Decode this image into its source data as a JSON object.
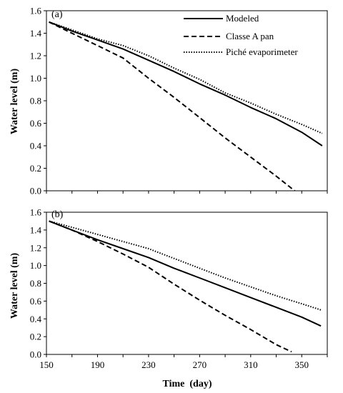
{
  "chart_data": [
    {
      "type": "line",
      "panel_label": "(a)",
      "xlabel": "",
      "ylabel": "Water level (m)",
      "xlim": [
        150,
        370
      ],
      "ylim": [
        0,
        1.6
      ],
      "yticks": [
        "0.0",
        "0.2",
        "0.4",
        "0.6",
        "0.8",
        "1.0",
        "1.2",
        "1.4",
        "1.6"
      ],
      "x_tick_labels_shown": false,
      "grid": false,
      "legend_placement": "top-right",
      "series": [
        {
          "name": "Modeled",
          "style": "solid",
          "x": [
            152,
            170,
            190,
            210,
            230,
            250,
            270,
            290,
            310,
            330,
            350,
            366
          ],
          "y": [
            1.5,
            1.42,
            1.34,
            1.26,
            1.16,
            1.06,
            0.95,
            0.85,
            0.74,
            0.64,
            0.52,
            0.4
          ]
        },
        {
          "name": "Classe A pan",
          "style": "dashed",
          "x": [
            152,
            170,
            190,
            210,
            230,
            250,
            270,
            290,
            310,
            330,
            350,
            362
          ],
          "y": [
            1.5,
            1.4,
            1.29,
            1.18,
            1.0,
            0.83,
            0.65,
            0.47,
            0.3,
            0.13,
            -0.05,
            -0.05
          ]
        },
        {
          "name": "Piché evaporimeter",
          "style": "dotted",
          "x": [
            152,
            170,
            190,
            210,
            230,
            250,
            270,
            290,
            310,
            330,
            350,
            366
          ],
          "y": [
            1.5,
            1.43,
            1.35,
            1.29,
            1.2,
            1.09,
            0.99,
            0.87,
            0.78,
            0.68,
            0.59,
            0.51
          ]
        }
      ]
    },
    {
      "type": "line",
      "panel_label": "(b)",
      "xlabel": "Time  (day)",
      "ylabel": "Water level (m)",
      "xlim": [
        150,
        370
      ],
      "ylim": [
        0,
        1.6
      ],
      "yticks": [
        "0.0",
        "0.2",
        "0.4",
        "0.6",
        "0.8",
        "1.0",
        "1.2",
        "1.4",
        "1.6"
      ],
      "xticks": [
        "150",
        "190",
        "230",
        "270",
        "310",
        "350"
      ],
      "x_tick_labels_shown": true,
      "grid": false,
      "series": [
        {
          "name": "Modeled",
          "style": "solid",
          "x": [
            152,
            170,
            190,
            210,
            230,
            250,
            270,
            290,
            310,
            330,
            350,
            365
          ],
          "y": [
            1.5,
            1.4,
            1.29,
            1.19,
            1.09,
            0.97,
            0.86,
            0.75,
            0.64,
            0.53,
            0.42,
            0.32
          ]
        },
        {
          "name": "Classe A pan",
          "style": "dashed",
          "x": [
            152,
            170,
            190,
            210,
            230,
            250,
            270,
            290,
            310,
            330,
            342
          ],
          "y": [
            1.5,
            1.4,
            1.27,
            1.13,
            0.98,
            0.79,
            0.61,
            0.44,
            0.28,
            0.11,
            0.03
          ]
        },
        {
          "name": "Piché evaporimeter",
          "style": "dotted",
          "x": [
            152,
            170,
            190,
            210,
            230,
            250,
            270,
            290,
            310,
            330,
            350,
            365
          ],
          "y": [
            1.5,
            1.43,
            1.35,
            1.27,
            1.19,
            1.08,
            0.97,
            0.86,
            0.76,
            0.66,
            0.57,
            0.5
          ]
        }
      ]
    }
  ]
}
